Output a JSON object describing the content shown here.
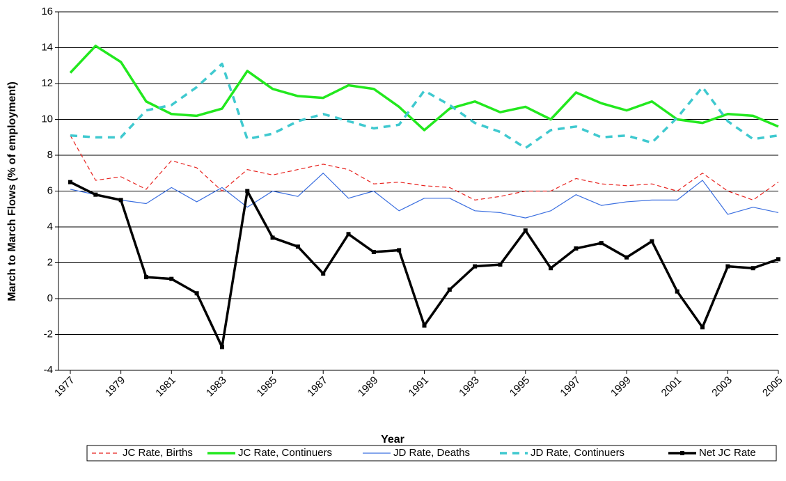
{
  "chart_data": {
    "type": "line",
    "x_label": "Year",
    "y_label": "March to March Flows (% of employment)",
    "x": [
      1977,
      1978,
      1979,
      1980,
      1981,
      1982,
      1983,
      1984,
      1985,
      1986,
      1987,
      1988,
      1989,
      1990,
      1991,
      1992,
      1993,
      1994,
      1995,
      1996,
      1997,
      1998,
      1999,
      2000,
      2001,
      2002,
      2003,
      2004,
      2005
    ],
    "xlim": [
      1977,
      2005
    ],
    "xticks": [
      1977,
      1979,
      1981,
      1983,
      1985,
      1987,
      1989,
      1991,
      1993,
      1995,
      1997,
      1999,
      2001,
      2003,
      2005
    ],
    "ylim": [
      -4,
      16
    ],
    "yticks": [
      -4,
      -2,
      0,
      2,
      4,
      6,
      8,
      10,
      12,
      14,
      16
    ],
    "grid": true,
    "legend": "bottom",
    "series": [
      {
        "name": "JC Rate, Births",
        "color": "#e8221e",
        "line_style": "dashed",
        "weight": "thin",
        "values": [
          9.1,
          6.6,
          6.8,
          6.1,
          7.7,
          7.3,
          6.0,
          7.2,
          6.9,
          7.2,
          7.5,
          7.2,
          6.4,
          6.5,
          6.3,
          6.2,
          5.5,
          5.7,
          6.0,
          6.0,
          6.7,
          6.4,
          6.3,
          6.4,
          6.0,
          7.0,
          6.0,
          5.5,
          6.5
        ]
      },
      {
        "name": "JC Rate, Continuers",
        "color": "#22e81e",
        "line_style": "solid",
        "weight": "thick",
        "values": [
          12.6,
          14.1,
          13.2,
          11.0,
          10.3,
          10.2,
          10.6,
          12.7,
          11.7,
          11.3,
          11.2,
          11.9,
          11.7,
          10.7,
          9.4,
          10.6,
          11.0,
          10.4,
          10.7,
          10.0,
          11.5,
          10.9,
          10.5,
          11.0,
          10.0,
          9.8,
          10.3,
          10.2,
          9.6
        ]
      },
      {
        "name": "JD Rate, Deaths",
        "color": "#3b6fe0",
        "line_style": "solid",
        "weight": "thin",
        "values": [
          6.1,
          5.8,
          5.5,
          5.3,
          6.2,
          5.4,
          6.2,
          5.1,
          6.0,
          5.7,
          7.0,
          5.6,
          6.0,
          4.9,
          5.6,
          5.6,
          4.9,
          4.8,
          4.5,
          4.9,
          5.8,
          5.2,
          5.4,
          5.5,
          5.5,
          6.6,
          4.7,
          5.1,
          4.8
        ]
      },
      {
        "name": "JD Rate, Continuers",
        "color": "#3fc9cf",
        "line_style": "dashed",
        "weight": "thick",
        "values": [
          9.1,
          9.0,
          9.0,
          10.5,
          10.8,
          11.8,
          13.1,
          8.9,
          9.2,
          9.9,
          10.3,
          9.9,
          9.5,
          9.7,
          11.6,
          10.8,
          9.8,
          9.3,
          8.4,
          9.4,
          9.6,
          9.0,
          9.1,
          8.7,
          10.1,
          11.8,
          9.9,
          8.9,
          9.1
        ]
      },
      {
        "name": "Net JC Rate",
        "color": "#000000",
        "line_style": "solid",
        "weight": "thick",
        "marker": "square",
        "values": [
          6.5,
          5.8,
          5.5,
          1.2,
          1.1,
          0.3,
          -2.7,
          6.0,
          3.4,
          2.9,
          1.4,
          3.6,
          2.6,
          2.7,
          -1.5,
          0.5,
          1.8,
          1.9,
          3.8,
          1.7,
          2.8,
          3.1,
          2.3,
          3.2,
          0.4,
          -1.6,
          1.8,
          1.7,
          2.2
        ]
      }
    ]
  }
}
